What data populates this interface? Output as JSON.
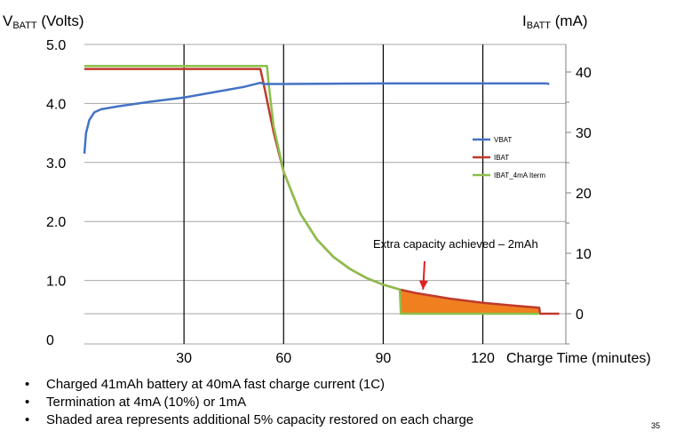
{
  "axes": {
    "left_title": {
      "prefix": "V",
      "sub": "BATT",
      "suffix": " (Volts)"
    },
    "right_title": {
      "prefix": "I",
      "sub": "BATT",
      "suffix": " (mA)"
    },
    "x_title": "Charge Time (minutes)"
  },
  "chart_data": {
    "type": "line",
    "x_label": "Charge Time (minutes)",
    "x_ticks": [
      30,
      60,
      90,
      120
    ],
    "x_range": [
      0,
      145
    ],
    "y_left": {
      "label": "VBATT (Volts)",
      "unit": "Volts",
      "range": [
        0,
        5.0
      ],
      "ticks": [
        "0",
        "1.0",
        "2.0",
        "3.0",
        "4.0",
        "5.0"
      ],
      "tick_values": [
        0,
        1,
        2,
        3,
        4,
        5
      ]
    },
    "y_right": {
      "label": "IBATT (mA)",
      "unit": "mA",
      "range": [
        -5,
        45
      ],
      "ticks": [
        "0",
        "10",
        "20",
        "30",
        "40"
      ],
      "tick_values": [
        0,
        10,
        20,
        30,
        40
      ]
    },
    "grid": {
      "vertical_lines_at": [
        30,
        60,
        90,
        120
      ],
      "horizontal": true
    },
    "legend": {
      "position": "right-middle"
    },
    "series": [
      {
        "name": "VBAT",
        "axis": "left",
        "color": "#4472c4",
        "points": [
          [
            0,
            3.15
          ],
          [
            0.5,
            3.5
          ],
          [
            1.5,
            3.72
          ],
          [
            3,
            3.85
          ],
          [
            5,
            3.9
          ],
          [
            10,
            3.95
          ],
          [
            20,
            4.03
          ],
          [
            30,
            4.1
          ],
          [
            40,
            4.2
          ],
          [
            48,
            4.28
          ],
          [
            53,
            4.35
          ],
          [
            54,
            4.33
          ],
          [
            60,
            4.33
          ],
          [
            90,
            4.34
          ],
          [
            120,
            4.34
          ],
          [
            139,
            4.34
          ],
          [
            140,
            4.33
          ]
        ]
      },
      {
        "name": "IBAT",
        "axis": "right",
        "color": "#c0392b",
        "points": [
          [
            0,
            40.5
          ],
          [
            53,
            40.5
          ],
          [
            54,
            38
          ],
          [
            57,
            30
          ],
          [
            60,
            23.5
          ],
          [
            65,
            16.6
          ],
          [
            70,
            12.3
          ],
          [
            75,
            9.4
          ],
          [
            80,
            7.4
          ],
          [
            85,
            5.9
          ],
          [
            90,
            4.8
          ],
          [
            95,
            4.0
          ],
          [
            100,
            3.4
          ],
          [
            110,
            2.5
          ],
          [
            120,
            1.8
          ],
          [
            130,
            1.3
          ],
          [
            137,
            1.0
          ],
          [
            137.2,
            0
          ],
          [
            143,
            0
          ]
        ]
      },
      {
        "name": "IBAT_4mA Iterm",
        "axis": "right",
        "color": "#8cbf4a",
        "points": [
          [
            0,
            41
          ],
          [
            55,
            41
          ],
          [
            55.5,
            38
          ],
          [
            57,
            31
          ],
          [
            60,
            23.5
          ],
          [
            65,
            16.6
          ],
          [
            70,
            12.3
          ],
          [
            75,
            9.4
          ],
          [
            80,
            7.4
          ],
          [
            85,
            5.9
          ],
          [
            90,
            4.8
          ],
          [
            95,
            4.0
          ],
          [
            95.3,
            0
          ],
          [
            137,
            0
          ]
        ]
      }
    ],
    "shaded_region": {
      "x_start": 95,
      "x_end": 137,
      "color": "#f07f20"
    },
    "annotation": {
      "text": "Extra capacity achieved – 2mAh",
      "arrow_to": [
        102,
        4.0
      ]
    }
  },
  "bullets": [
    "Charged 41mAh battery at 40mA fast charge current (1C)",
    "Termination at 4mA (10%) or 1mA",
    "Shaded area represents additional 5% capacity restored on each charge"
  ],
  "bullet_symbol": "•",
  "page_number": "35"
}
